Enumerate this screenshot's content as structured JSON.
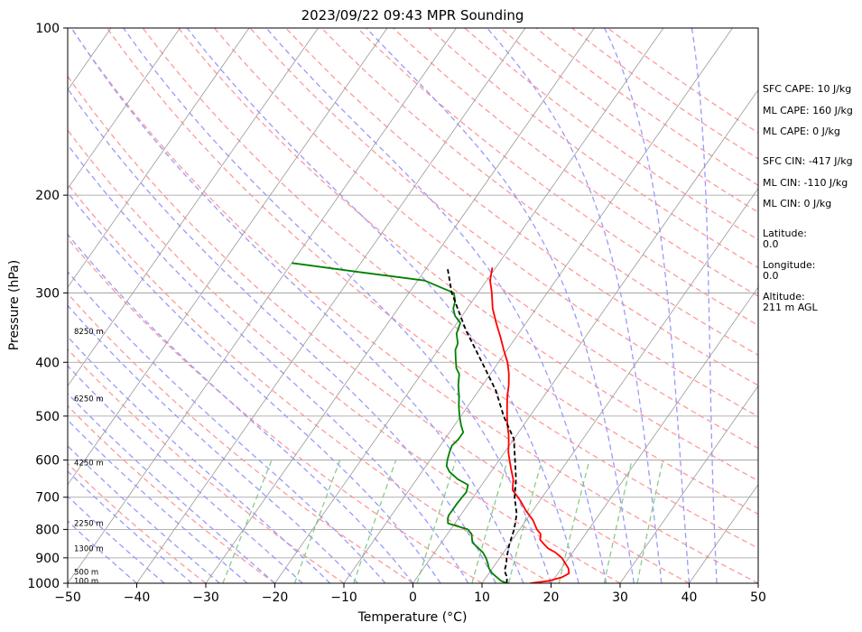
{
  "chart_data": {
    "type": "line",
    "title": "2023/09/22 09:43 MPR Sounding",
    "xlabel": "Temperature (°C)",
    "ylabel": "Pressure (hPa)",
    "xlim": [
      -50,
      50
    ],
    "ylim": [
      1000,
      100
    ],
    "y_scale": "log",
    "x_ticks": [
      "−50",
      "−40",
      "−30",
      "−20",
      "−10",
      "0",
      "10",
      "20",
      "30",
      "40",
      "50"
    ],
    "y_ticks": [
      {
        "p": 100,
        "label": "100"
      },
      {
        "p": 200,
        "label": "200"
      },
      {
        "p": 300,
        "label": "300"
      },
      {
        "p": 400,
        "label": "400"
      },
      {
        "p": 500,
        "label": "500"
      },
      {
        "p": 600,
        "label": "600"
      },
      {
        "p": 700,
        "label": "700"
      },
      {
        "p": 800,
        "label": "800"
      },
      {
        "p": 900,
        "label": "900"
      },
      {
        "p": 1000,
        "label": "1000"
      }
    ],
    "height_labels": [
      {
        "p": 990,
        "label": "100 m"
      },
      {
        "p": 955,
        "label": "500 m"
      },
      {
        "p": 865,
        "label": "1300 m"
      },
      {
        "p": 780,
        "label": "2250 m"
      },
      {
        "p": 607,
        "label": "4250 m"
      },
      {
        "p": 465,
        "label": "6250 m"
      },
      {
        "p": 352,
        "label": "8250 m"
      }
    ],
    "series": [
      {
        "role": "temperature",
        "color": "#ff0000",
        "points": [
          [
            1000,
            17
          ],
          [
            990,
            19.5
          ],
          [
            975,
            21
          ],
          [
            960,
            21.6
          ],
          [
            940,
            21
          ],
          [
            920,
            20
          ],
          [
            900,
            19
          ],
          [
            880,
            17.5
          ],
          [
            865,
            16
          ],
          [
            850,
            15
          ],
          [
            835,
            14
          ],
          [
            815,
            13.5
          ],
          [
            800,
            12.5
          ],
          [
            770,
            11
          ],
          [
            740,
            9
          ],
          [
            715,
            7.5
          ],
          [
            700,
            6.5
          ],
          [
            680,
            5
          ],
          [
            650,
            4
          ],
          [
            620,
            2.5
          ],
          [
            600,
            1.5
          ],
          [
            580,
            0.5
          ],
          [
            560,
            -0.3
          ],
          [
            540,
            -1.2
          ],
          [
            520,
            -2.3
          ],
          [
            500,
            -3.3
          ],
          [
            480,
            -4.3
          ],
          [
            460,
            -5.3
          ],
          [
            440,
            -6.2
          ],
          [
            420,
            -7.3
          ],
          [
            400,
            -8.7
          ],
          [
            380,
            -10.5
          ],
          [
            360,
            -12.3
          ],
          [
            340,
            -14.3
          ],
          [
            320,
            -16.3
          ],
          [
            300,
            -18
          ],
          [
            285,
            -19.5
          ],
          [
            270,
            -20.5
          ]
        ]
      },
      {
        "role": "dewpoint",
        "color": "#008000",
        "points": [
          [
            1000,
            13.6
          ],
          [
            990,
            12.5
          ],
          [
            975,
            11.5
          ],
          [
            960,
            10.5
          ],
          [
            940,
            9.5
          ],
          [
            920,
            8.8
          ],
          [
            900,
            8
          ],
          [
            880,
            7
          ],
          [
            860,
            5.6
          ],
          [
            845,
            4.5
          ],
          [
            830,
            4
          ],
          [
            815,
            3.5
          ],
          [
            800,
            2.5
          ],
          [
            780,
            -1
          ],
          [
            765,
            -1.5
          ],
          [
            755,
            -1.7
          ],
          [
            740,
            -1.7
          ],
          [
            720,
            -1.7
          ],
          [
            700,
            -1.6
          ],
          [
            685,
            -1.5
          ],
          [
            665,
            -2
          ],
          [
            650,
            -4
          ],
          [
            630,
            -6
          ],
          [
            615,
            -7
          ],
          [
            600,
            -7.5
          ],
          [
            580,
            -8
          ],
          [
            565,
            -8.3
          ],
          [
            550,
            -8
          ],
          [
            535,
            -8
          ],
          [
            520,
            -9
          ],
          [
            500,
            -10.2
          ],
          [
            480,
            -11.3
          ],
          [
            460,
            -12.3
          ],
          [
            440,
            -13.5
          ],
          [
            420,
            -14.5
          ],
          [
            410,
            -15.5
          ],
          [
            395,
            -16.5
          ],
          [
            380,
            -17.5
          ],
          [
            370,
            -17.8
          ],
          [
            355,
            -19
          ],
          [
            340,
            -19.5
          ],
          [
            330,
            -21
          ],
          [
            320,
            -22
          ],
          [
            310,
            -22.5
          ],
          [
            300,
            -23.5
          ],
          [
            285,
            -29
          ],
          [
            275,
            -39.5
          ],
          [
            265,
            -50
          ]
        ]
      },
      {
        "role": "parcel",
        "color": "#000000",
        "points": [
          [
            1000,
            13.6
          ],
          [
            975,
            13
          ],
          [
            950,
            12
          ],
          [
            920,
            11.5
          ],
          [
            900,
            11
          ],
          [
            870,
            10.4
          ],
          [
            850,
            10
          ],
          [
            800,
            9.2
          ],
          [
            750,
            8
          ],
          [
            700,
            6
          ],
          [
            650,
            4.4
          ],
          [
            600,
            2.3
          ],
          [
            550,
            0
          ],
          [
            500,
            -3.8
          ],
          [
            450,
            -7.5
          ],
          [
            400,
            -12.4
          ],
          [
            350,
            -18
          ],
          [
            300,
            -23.8
          ],
          [
            270,
            -27
          ]
        ]
      }
    ]
  },
  "side_panel": {
    "sfc_cape": "SFC CAPE: 10 J/kg",
    "ml_cape_1": "ML CAPE: 160 J/kg",
    "ml_cape_2": "ML CAPE: 0 J/kg",
    "sfc_cin": "SFC CIN: -417 J/kg",
    "ml_cin_1": "ML CIN: -110 J/kg",
    "ml_cin_2": "ML CIN: 0 J/kg",
    "latitude_label": "Latitude:",
    "latitude_value": "0.0",
    "longitude_label": "Longitude:",
    "longitude_value": "0.0",
    "altitude_label": "Altitude:",
    "altitude_value": "211 m AGL"
  },
  "colors": {
    "temperature": "#ff0000",
    "dewpoint": "#008000",
    "parcel": "#000000",
    "dry_adiabats": "#ff9999",
    "moist_adiabats": "#9999ff",
    "mixing_ratio": "#88cc88",
    "isotherms": "#999999"
  }
}
